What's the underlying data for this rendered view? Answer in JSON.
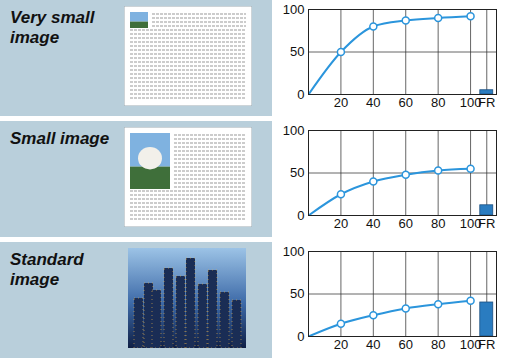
{
  "chart_data": [
    {
      "type": "line",
      "title": "Very small image",
      "xlim": [
        0,
        116
      ],
      "xticks": [
        20,
        40,
        60,
        80,
        100,
        {
          "value": 110,
          "label": "FR"
        }
      ],
      "ylim": [
        0,
        100
      ],
      "yticks": [
        0,
        50,
        100
      ],
      "grid": true,
      "series": [
        {
          "type": "line",
          "color": "#2b95dc",
          "marker": "circle",
          "x": [
            0,
            20,
            40,
            60,
            80,
            100
          ],
          "values": [
            0,
            50,
            80,
            87,
            90,
            92
          ]
        },
        {
          "type": "bar",
          "color": "#2a7cc0",
          "x": [
            110
          ],
          "values": [
            5
          ]
        }
      ]
    },
    {
      "type": "line",
      "title": "Small image",
      "xlim": [
        0,
        116
      ],
      "xticks": [
        20,
        40,
        60,
        80,
        100,
        {
          "value": 110,
          "label": "FR"
        }
      ],
      "ylim": [
        0,
        100
      ],
      "yticks": [
        0,
        50,
        100
      ],
      "grid": true,
      "series": [
        {
          "type": "line",
          "color": "#2b95dc",
          "marker": "circle",
          "x": [
            0,
            20,
            40,
            60,
            80,
            100
          ],
          "values": [
            0,
            25,
            40,
            48,
            53,
            55
          ]
        },
        {
          "type": "bar",
          "color": "#2a7cc0",
          "x": [
            110
          ],
          "values": [
            12
          ]
        }
      ]
    },
    {
      "type": "line",
      "title": "Standard image",
      "xlim": [
        0,
        116
      ],
      "xticks": [
        20,
        40,
        60,
        80,
        100,
        {
          "value": 110,
          "label": "FR"
        }
      ],
      "ylim": [
        0,
        100
      ],
      "yticks": [
        0,
        50,
        100
      ],
      "grid": true,
      "series": [
        {
          "type": "line",
          "color": "#2b95dc",
          "marker": "circle",
          "x": [
            0,
            20,
            40,
            60,
            80,
            100
          ],
          "values": [
            0,
            15,
            25,
            33,
            38,
            42
          ]
        },
        {
          "type": "bar",
          "color": "#2a7cc0",
          "x": [
            110
          ],
          "values": [
            40
          ]
        }
      ]
    }
  ]
}
